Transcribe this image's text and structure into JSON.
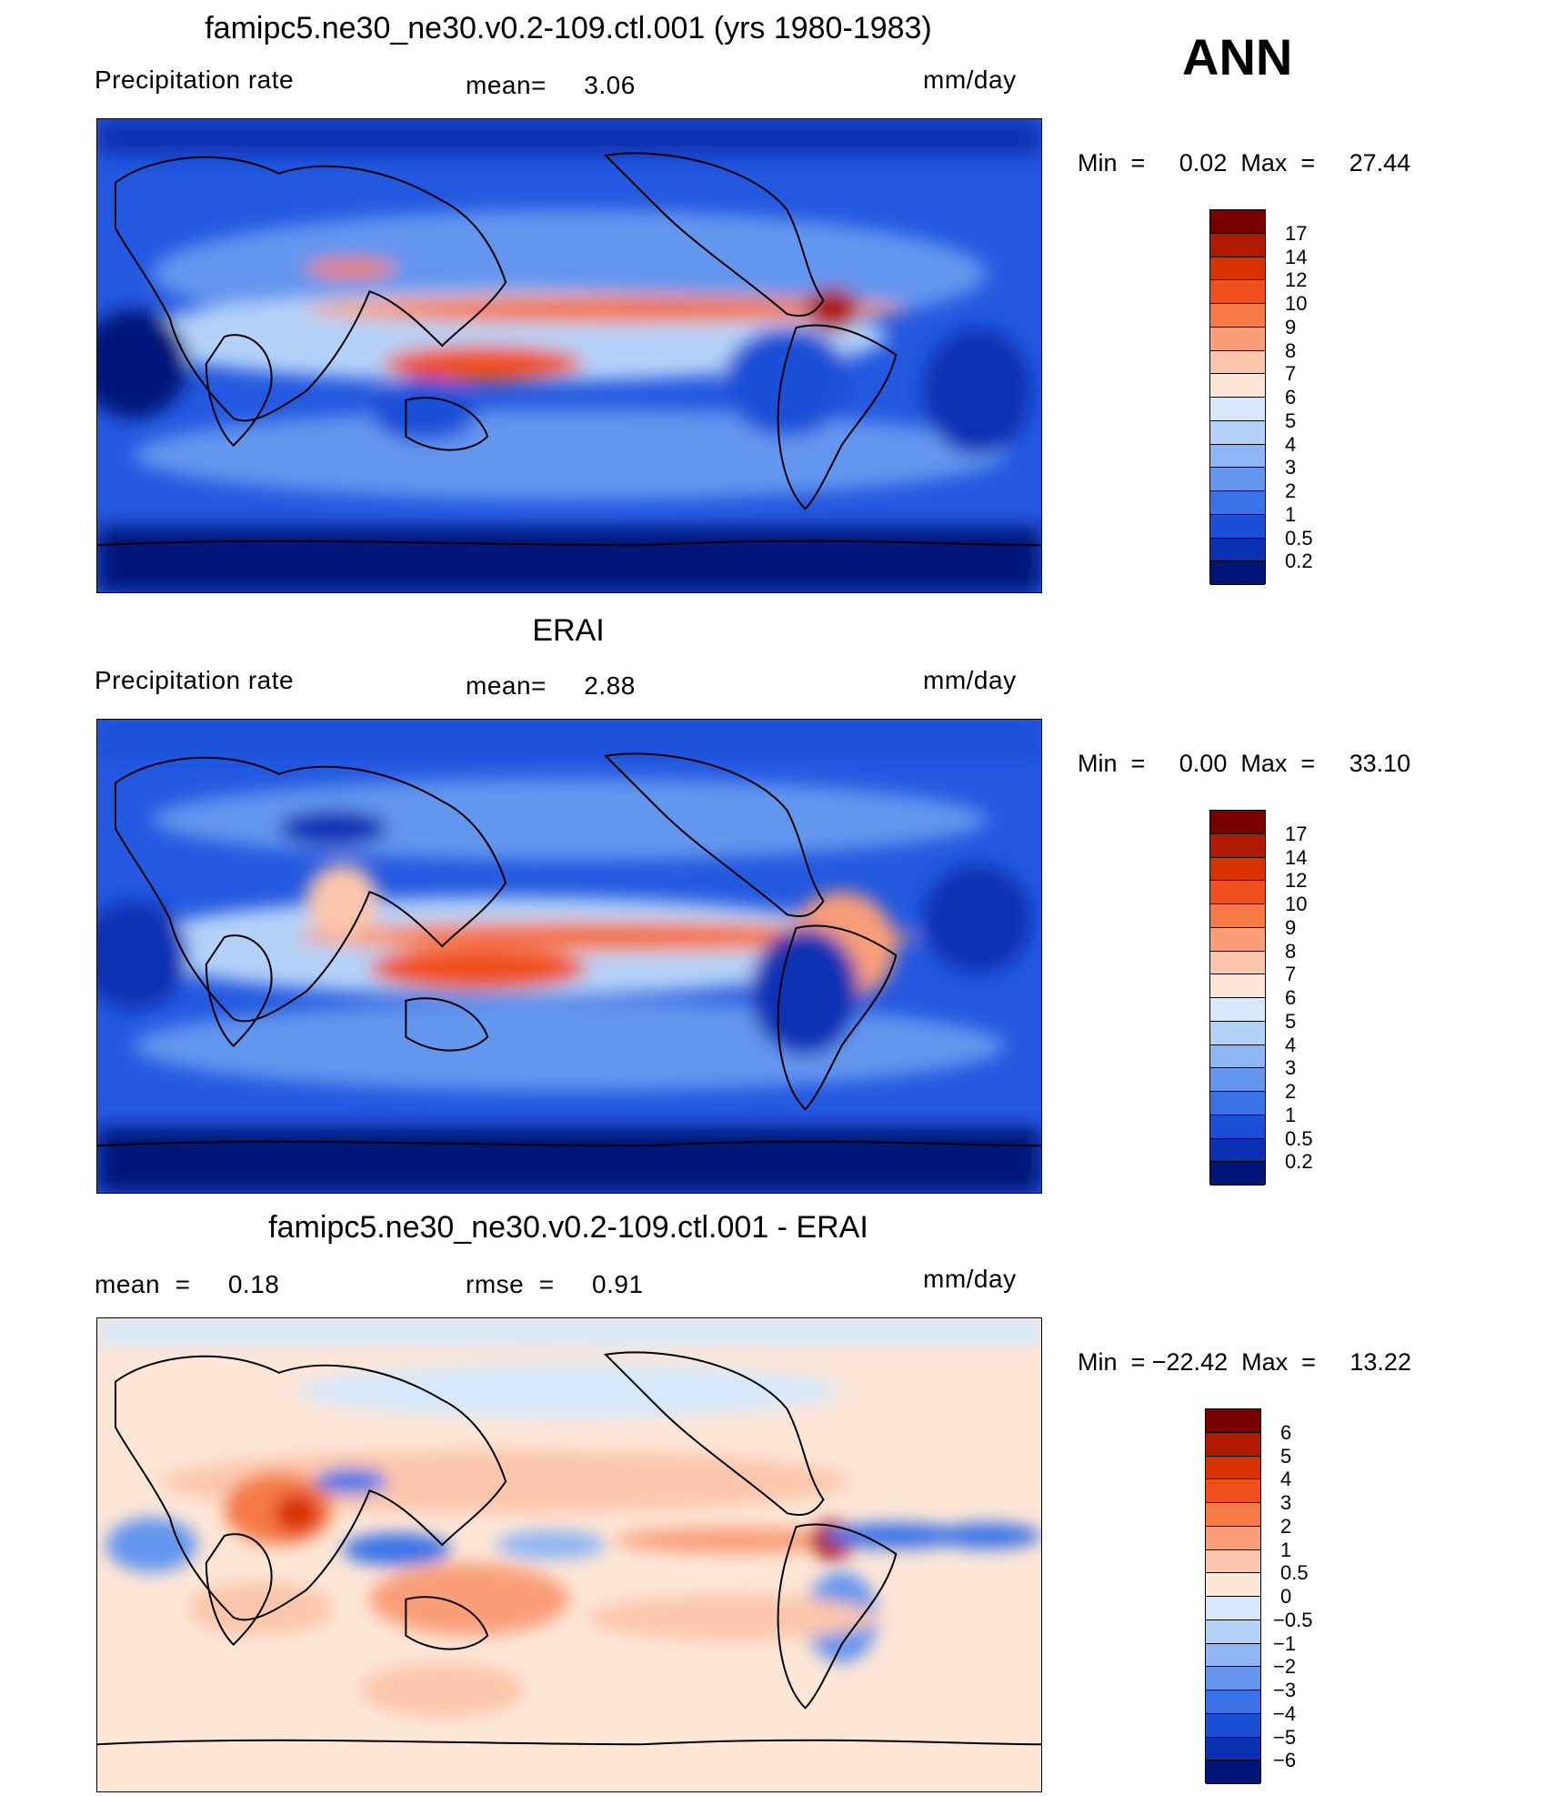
{
  "season": "ANN",
  "panels": [
    {
      "title": "famipc5.ne30_ne30.v0.2-109.ctl.001 (yrs 1980-1983)",
      "left_label": "Precipitation  rate",
      "center_label": "mean=     3.06",
      "units": "mm/day",
      "minmax": "Min  =     0.02  Max  =     27.44"
    },
    {
      "title": "ERAI",
      "left_label": "Precipitation  rate",
      "center_label": "mean=     2.88",
      "units": "mm/day",
      "minmax": "Min  =     0.00  Max  =     33.10"
    },
    {
      "title": "famipc5.ne30_ne30.v0.2-109.ctl.001 - ERAI",
      "left_label": "mean  =     0.18",
      "center_label": "rmse  =     0.91",
      "units": "mm/day",
      "minmax": "Min  = −22.42  Max  =     13.22"
    }
  ],
  "chart_data": [
    {
      "type": "heatmap",
      "title": "famipc5.ne30_ne30.v0.2-109.ctl.001 (yrs 1980-1983)",
      "variable": "Precipitation  rate",
      "units": "mm/day",
      "mean": 3.06,
      "min": 0.02,
      "max": 27.44,
      "colorbar_levels": [
        "17",
        "14",
        "12",
        "10",
        "9",
        "8",
        "7",
        "6",
        "5",
        "4",
        "3",
        "2",
        "1",
        "0.5",
        "0.2"
      ],
      "colorbar_colors": [
        "#7a0000",
        "#b01a00",
        "#d83200",
        "#f0501e",
        "#f57a46",
        "#f99e78",
        "#fcc6ac",
        "#fde6d6",
        "#d6e8fa",
        "#b4d2f8",
        "#8eb6f4",
        "#6496ee",
        "#3a72e8",
        "#1c4fd8",
        "#0a30b4",
        "#00157a"
      ]
    },
    {
      "type": "heatmap",
      "title": "ERAI",
      "variable": "Precipitation  rate",
      "units": "mm/day",
      "mean": 2.88,
      "min": 0.0,
      "max": 33.1,
      "colorbar_levels": [
        "17",
        "14",
        "12",
        "10",
        "9",
        "8",
        "7",
        "6",
        "5",
        "4",
        "3",
        "2",
        "1",
        "0.5",
        "0.2"
      ],
      "colorbar_colors": [
        "#7a0000",
        "#b01a00",
        "#d83200",
        "#f0501e",
        "#f57a46",
        "#f99e78",
        "#fcc6ac",
        "#fde6d6",
        "#d6e8fa",
        "#b4d2f8",
        "#8eb6f4",
        "#6496ee",
        "#3a72e8",
        "#1c4fd8",
        "#0a30b4",
        "#00157a"
      ]
    },
    {
      "type": "heatmap",
      "title": "famipc5.ne30_ne30.v0.2-109.ctl.001 - ERAI",
      "units": "mm/day",
      "mean": 0.18,
      "rmse": 0.91,
      "min": -22.42,
      "max": 13.22,
      "colorbar_levels": [
        "6",
        "5",
        "4",
        "3",
        "2",
        "1",
        "0.5",
        "0",
        "−0.5",
        "−1",
        "−2",
        "−3",
        "−4",
        "−5",
        "−6"
      ],
      "colorbar_colors": [
        "#7a0000",
        "#b01a00",
        "#d83200",
        "#f0501e",
        "#f57a46",
        "#f99e78",
        "#fcc6ac",
        "#fde6d6",
        "#d6e8fa",
        "#b4d2f8",
        "#8eb6f4",
        "#6496ee",
        "#3a72e8",
        "#1c4fd8",
        "#0a30b4",
        "#00157a"
      ]
    }
  ]
}
